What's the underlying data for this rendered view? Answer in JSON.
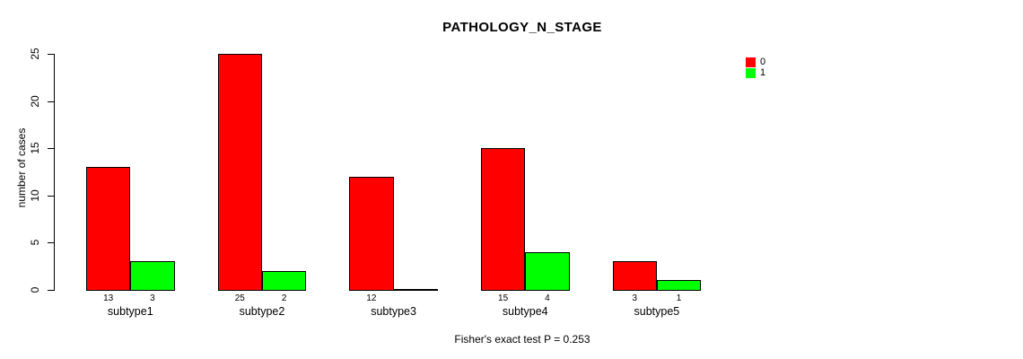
{
  "chart_data": {
    "type": "bar",
    "title": "PATHOLOGY_N_STAGE",
    "categories": [
      "subtype1",
      "subtype2",
      "subtype3",
      "subtype4",
      "subtype5"
    ],
    "series": [
      {
        "name": "0",
        "color": "#FF0000",
        "values": [
          13,
          25,
          12,
          15,
          3
        ]
      },
      {
        "name": "1",
        "color": "#00FF00",
        "values": [
          3,
          2,
          0,
          4,
          1
        ]
      }
    ],
    "xlabel": "",
    "ylabel": "number of cases",
    "ylim": [
      0,
      25
    ],
    "yticks": [
      0,
      5,
      10,
      15,
      20,
      25
    ],
    "grid": false,
    "legend_position": "top-right",
    "bar_value_labels_shown": true,
    "zero_value_bars_drawn_as_line": true,
    "annotation": "Fisher's exact test P = 0.253",
    "axis_color": "#000000",
    "background_color": "#FFFFFF"
  }
}
